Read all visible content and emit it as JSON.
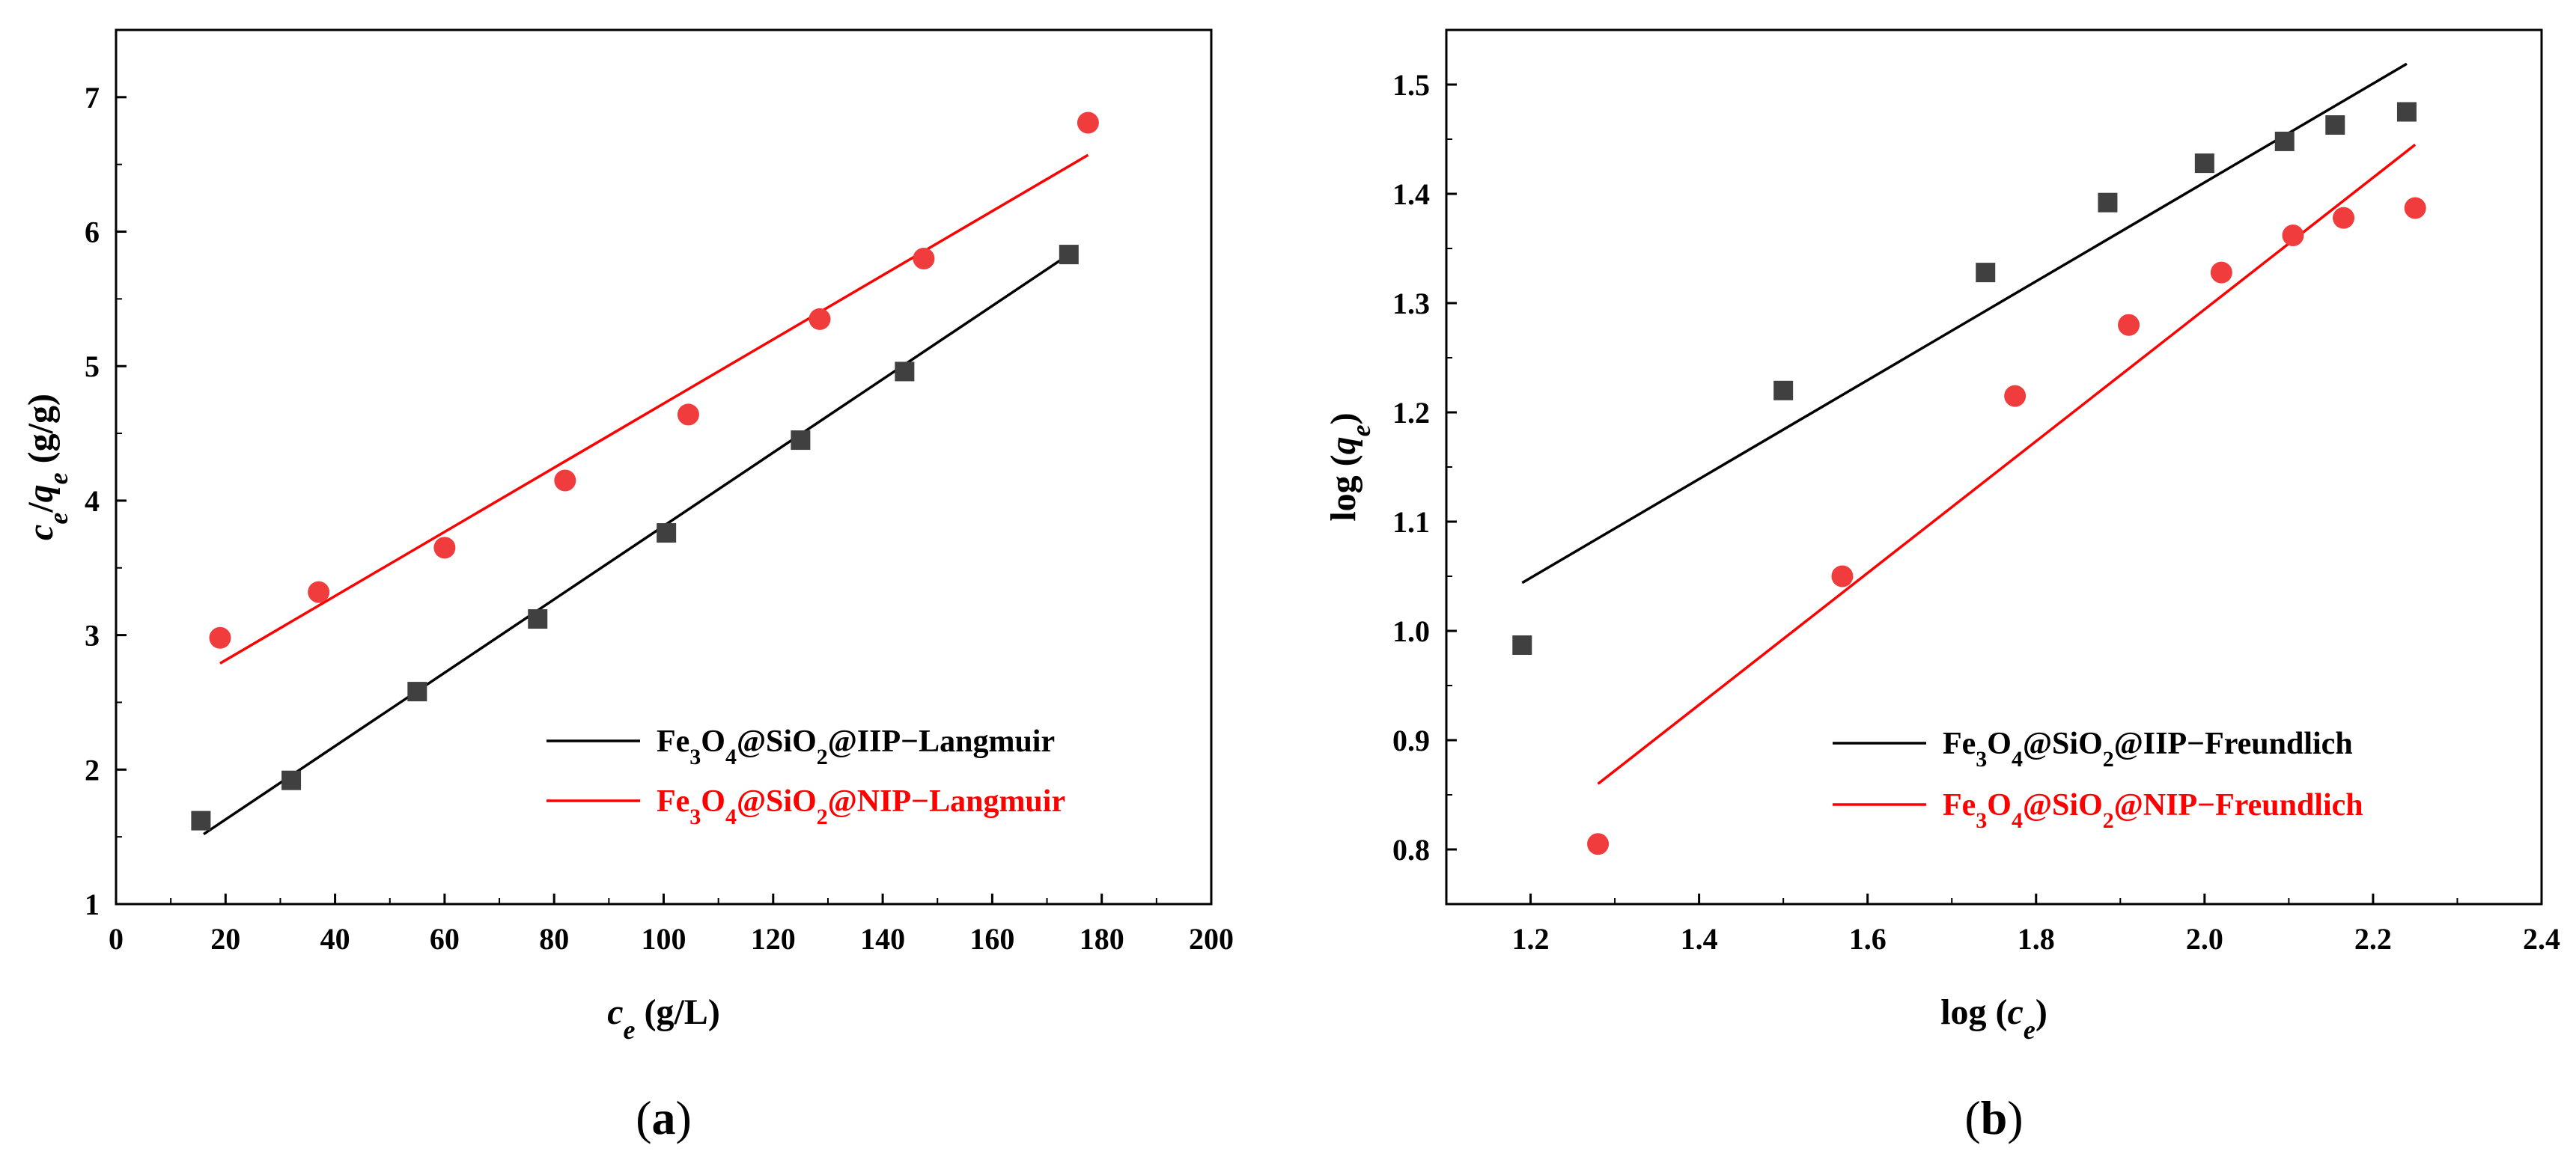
{
  "chart_data": [
    {
      "type": "scatter",
      "panel": "(a)",
      "xlabel": "c_e (g/L)",
      "ylabel": "c_e/q_e (g/g)",
      "xlim": [
        0,
        200
      ],
      "ylim": [
        1,
        7.5
      ],
      "x_ticks": [
        0,
        20,
        40,
        60,
        80,
        100,
        120,
        140,
        160,
        180,
        200
      ],
      "y_ticks": [
        1,
        2,
        3,
        4,
        5,
        6,
        7
      ],
      "grid": false,
      "legend_position": "bottom-right",
      "series": [
        {
          "name": "Fe3O4@SiO2@IIP−Langmuir",
          "color": "#000000",
          "marker": "square",
          "marker_color": "#404040",
          "points": [
            [
              15.5,
              1.62
            ],
            [
              32,
              1.92
            ],
            [
              55,
              2.58
            ],
            [
              77,
              3.12
            ],
            [
              100.5,
              3.76
            ],
            [
              125,
              4.45
            ],
            [
              144,
              4.96
            ],
            [
              174,
              5.83
            ]
          ],
          "fit_line": [
            [
              16,
              1.52
            ],
            [
              174,
              5.83
            ]
          ]
        },
        {
          "name": "Fe3O4@SiO2@NIP−Langmuir",
          "color": "#ff0000",
          "marker": "circle",
          "marker_color": "#f03c3c",
          "points": [
            [
              19,
              2.98
            ],
            [
              37,
              3.32
            ],
            [
              60,
              3.65
            ],
            [
              82,
              4.15
            ],
            [
              104.5,
              4.64
            ],
            [
              128.5,
              5.35
            ],
            [
              147.5,
              5.8
            ],
            [
              177.5,
              6.81
            ]
          ],
          "fit_line": [
            [
              19,
              2.79
            ],
            [
              177.5,
              6.57
            ]
          ]
        }
      ]
    },
    {
      "type": "scatter",
      "panel": "(b)",
      "xlabel": "log (c_e)",
      "ylabel": "log (q_e)",
      "xlim": [
        1.1,
        2.4
      ],
      "ylim": [
        0.75,
        1.55
      ],
      "x_ticks": [
        1.2,
        1.4,
        1.6,
        1.8,
        2.0,
        2.2,
        2.4
      ],
      "y_ticks": [
        0.8,
        0.9,
        1.0,
        1.1,
        1.2,
        1.3,
        1.4,
        1.5
      ],
      "grid": false,
      "legend_position": "bottom-right",
      "series": [
        {
          "name": "Fe3O4@SiO2@IIP−Freundlich",
          "color": "#000000",
          "marker": "square",
          "marker_color": "#404040",
          "points": [
            [
              1.19,
              0.987
            ],
            [
              1.5,
              1.22
            ],
            [
              1.74,
              1.328
            ],
            [
              1.885,
              1.392
            ],
            [
              2.0,
              1.428
            ],
            [
              2.095,
              1.448
            ],
            [
              2.155,
              1.463
            ],
            [
              2.24,
              1.475
            ]
          ],
          "fit_line": [
            [
              1.19,
              1.044
            ],
            [
              2.24,
              1.519
            ]
          ]
        },
        {
          "name": "Fe3O4@SiO2@NIP−Freundlich",
          "color": "#ff0000",
          "marker": "circle",
          "marker_color": "#f03c3c",
          "points": [
            [
              1.28,
              0.805
            ],
            [
              1.57,
              1.05
            ],
            [
              1.775,
              1.215
            ],
            [
              1.91,
              1.28
            ],
            [
              2.02,
              1.328
            ],
            [
              2.105,
              1.362
            ],
            [
              2.165,
              1.378
            ],
            [
              2.25,
              1.387
            ]
          ],
          "fit_line": [
            [
              1.28,
              0.86
            ],
            [
              2.25,
              1.445
            ]
          ]
        }
      ]
    }
  ]
}
